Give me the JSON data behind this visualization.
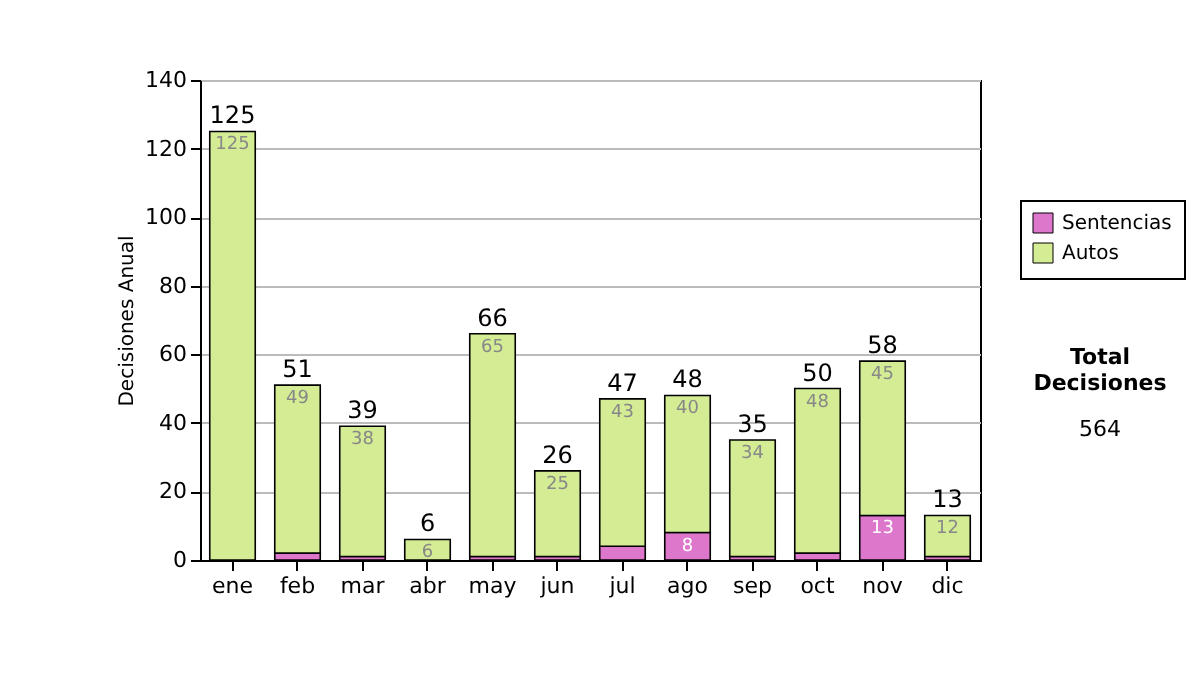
{
  "chart_data": {
    "type": "bar",
    "stacked": true,
    "ylabel": "Decisiones Anual",
    "categories": [
      "ene",
      "feb",
      "mar",
      "abr",
      "may",
      "jun",
      "jul",
      "ago",
      "sep",
      "oct",
      "nov",
      "dic"
    ],
    "series": [
      {
        "name": "Sentencias",
        "color": "#dd77cc",
        "values": [
          0,
          2,
          1,
          0,
          1,
          1,
          4,
          8,
          1,
          2,
          13,
          1
        ],
        "value_labels": [
          null,
          null,
          null,
          null,
          null,
          null,
          null,
          "8",
          null,
          null,
          "13",
          null
        ]
      },
      {
        "name": "Autos",
        "color": "#d4ec94",
        "values": [
          125,
          49,
          38,
          6,
          65,
          25,
          43,
          40,
          34,
          48,
          45,
          12
        ],
        "value_labels": [
          "125",
          "49",
          "38",
          "6",
          "65",
          "25",
          "43",
          "40",
          "34",
          "48",
          "45",
          "12"
        ]
      }
    ],
    "totals": [
      "125",
      "51",
      "39",
      "6",
      "66",
      "26",
      "47",
      "48",
      "35",
      "50",
      "58",
      "13"
    ],
    "ylim": [
      0,
      140
    ],
    "yticks": [
      0,
      20,
      40,
      60,
      80,
      100,
      120,
      140
    ],
    "grid": "y",
    "legend": "right",
    "annotations": [
      "Total Decisiones",
      "564"
    ]
  }
}
